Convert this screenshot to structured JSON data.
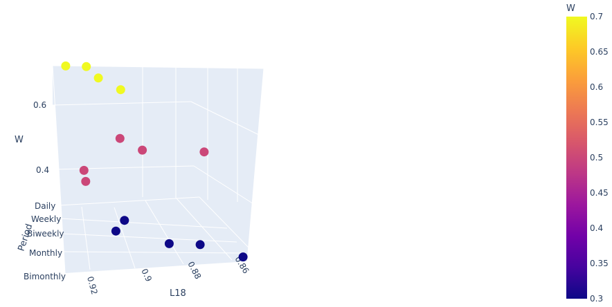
{
  "chart_data": {
    "type": "scatter",
    "mode": "3d",
    "axes": {
      "x": {
        "label": "L18",
        "ticks": [
          "0.92",
          "0.9",
          "0.88",
          "0.86"
        ]
      },
      "y": {
        "label": "Period",
        "categories": [
          "Daily",
          "Weekly",
          "Biweekly",
          "Monthly",
          "Bimonthly"
        ]
      },
      "z": {
        "label": "W",
        "ticks": [
          "0.6",
          "0.4"
        ]
      }
    },
    "colorbar": {
      "title": "W",
      "range": [
        0.3,
        0.7
      ],
      "ticks": [
        "0.7",
        "0.65",
        "0.6",
        "0.55",
        "0.5",
        "0.45",
        "0.4",
        "0.35",
        "0.3"
      ],
      "colorscale": [
        "#0d0887",
        "#46039f",
        "#7201a8",
        "#9c179e",
        "#bd3786",
        "#d8576b",
        "#ed7953",
        "#fb9f3a",
        "#fdca26",
        "#f0f921"
      ]
    },
    "points": [
      {
        "L18": 0.935,
        "Period": "Daily",
        "W": 0.7
      },
      {
        "L18": 0.925,
        "Period": "Daily",
        "W": 0.7
      },
      {
        "L18": 0.92,
        "Period": "Weekly",
        "W": 0.7
      },
      {
        "L18": 0.91,
        "Period": "Biweekly",
        "W": 0.7
      },
      {
        "L18": 0.93,
        "Period": "Monthly",
        "W": 0.5
      },
      {
        "L18": 0.93,
        "Period": "Bimonthly",
        "W": 0.5
      },
      {
        "L18": 0.91,
        "Period": "Daily",
        "W": 0.5
      },
      {
        "L18": 0.9,
        "Period": "Weekly",
        "W": 0.5
      },
      {
        "L18": 0.87,
        "Period": "Weekly",
        "W": 0.5
      },
      {
        "L18": 0.91,
        "Period": "Weekly",
        "W": 0.3
      },
      {
        "L18": 0.915,
        "Period": "Biweekly",
        "W": 0.3
      },
      {
        "L18": 0.89,
        "Period": "Monthly",
        "W": 0.3
      },
      {
        "L18": 0.875,
        "Period": "Monthly",
        "W": 0.3
      },
      {
        "L18": 0.855,
        "Period": "Bimonthly",
        "W": 0.3
      }
    ]
  }
}
